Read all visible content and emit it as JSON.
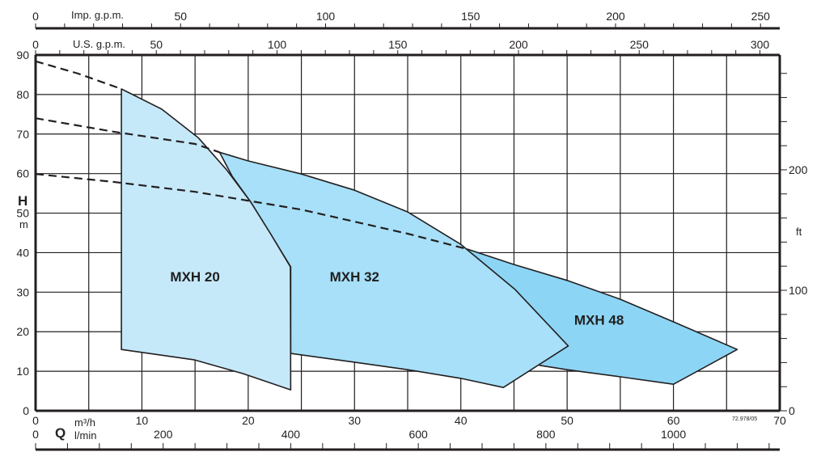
{
  "chart_data": {
    "type": "area",
    "title": "",
    "x_axis": {
      "label": "Q",
      "unit": "m³/h",
      "range": [
        0,
        70
      ],
      "ticks": [
        0,
        10,
        20,
        30,
        40,
        50,
        60,
        70
      ],
      "grid_step": 5
    },
    "x_axis_lmin": {
      "unit": "l/min",
      "ticks": [
        0,
        200,
        400,
        600,
        800,
        1000
      ],
      "minor_step": 50,
      "max": 1150
    },
    "top_axis_imp": {
      "unit": "Imp. g.p.m.",
      "ticks": [
        0,
        50,
        100,
        150,
        200,
        250
      ],
      "minor_step": 10,
      "max": 250
    },
    "top_axis_us": {
      "unit": "U.S. g.p.m.",
      "ticks": [
        0,
        50,
        100,
        150,
        200,
        250,
        300
      ],
      "minor_step": 10,
      "max": 300
    },
    "y_axis": {
      "label": "H",
      "unit": "m",
      "range": [
        0,
        90
      ],
      "ticks": [
        0,
        10,
        20,
        30,
        40,
        50,
        60,
        70,
        80,
        90
      ],
      "grid_step": 10
    },
    "y_axis_right": {
      "unit": "ft",
      "ticks": [
        0,
        100,
        200
      ],
      "minor_step": 20,
      "max": 280
    },
    "grid": true,
    "series": [
      {
        "name": "MXH 48",
        "color": "#8dd5f5",
        "polygon": [
          [
            40.6,
            40.9
          ],
          [
            45,
            37.0
          ],
          [
            50.1,
            32.9
          ],
          [
            55,
            28.2
          ],
          [
            60,
            22.5
          ],
          [
            66,
            15.5
          ],
          [
            60,
            6.7
          ],
          [
            55,
            8.6
          ],
          [
            50,
            10.4
          ],
          [
            47.4,
            11.5
          ],
          [
            44,
            20
          ],
          [
            40,
            30
          ]
        ],
        "label_at": [
          53,
          23
        ]
      },
      {
        "name": "MXH 32",
        "color": "#a7e0f8",
        "polygon": [
          [
            17.3,
            65.4
          ],
          [
            20,
            63.2
          ],
          [
            25,
            59.9
          ],
          [
            30,
            55.8
          ],
          [
            35,
            50.3
          ],
          [
            40,
            42.1
          ],
          [
            45.1,
            30.7
          ],
          [
            50.1,
            16.4
          ],
          [
            44,
            5.9
          ],
          [
            40,
            8.2
          ],
          [
            35,
            10.4
          ],
          [
            30,
            12.3
          ],
          [
            24,
            14.5
          ],
          [
            24,
            36.4
          ],
          [
            22.14,
            44.6
          ],
          [
            20.24,
            52.8
          ],
          [
            18.5,
            59.3
          ]
        ],
        "label_at": [
          30,
          34
        ]
      },
      {
        "name": "MXH 20",
        "color": "#c6e9fa",
        "polygon": [
          [
            8.07,
            81.4
          ],
          [
            11.87,
            76.3
          ],
          [
            15.29,
            69.1
          ],
          [
            17.96,
            61.0
          ],
          [
            20.24,
            52.8
          ],
          [
            22.14,
            44.6
          ],
          [
            23.97,
            36.4
          ],
          [
            24,
            5.3
          ],
          [
            19.5,
            9.4
          ],
          [
            14.9,
            12.9
          ],
          [
            8.07,
            15.5
          ]
        ],
        "label_at": [
          15,
          34
        ]
      }
    ],
    "dashed_curves": [
      [
        [
          0,
          88.4
        ],
        [
          4,
          85.3
        ],
        [
          8.07,
          81.4
        ]
      ],
      [
        [
          0,
          74.0
        ],
        [
          7.3,
          70.6
        ],
        [
          15,
          67.5
        ],
        [
          17.3,
          65.4
        ]
      ],
      [
        [
          0,
          59.9
        ],
        [
          7.3,
          57.9
        ],
        [
          15,
          55.4
        ],
        [
          25,
          50.9
        ],
        [
          35,
          44.8
        ],
        [
          40.6,
          40.9
        ]
      ]
    ],
    "code": "72.978/05"
  }
}
